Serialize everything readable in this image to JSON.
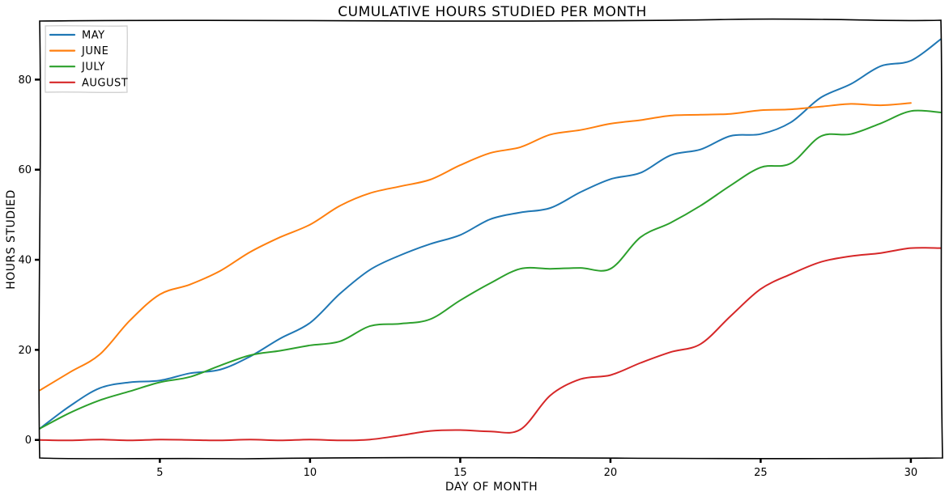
{
  "chart_data": {
    "type": "line",
    "title": "CUMULATIVE HOURS STUDIED PER MONTH",
    "xlabel": "DAY OF MONTH",
    "ylabel": "HOURS STUDIED",
    "xlim": [
      1,
      31
    ],
    "ylim": [
      -4,
      93
    ],
    "xticks": [
      5,
      10,
      15,
      20,
      25,
      30
    ],
    "yticks": [
      0,
      20,
      40,
      60,
      80
    ],
    "grid": false,
    "legend": "top-left",
    "x": [
      1,
      2,
      3,
      4,
      5,
      6,
      7,
      8,
      9,
      10,
      11,
      12,
      13,
      14,
      15,
      16,
      17,
      18,
      19,
      20,
      21,
      22,
      23,
      24,
      25,
      26,
      27,
      28,
      29,
      30,
      31
    ],
    "series": [
      {
        "name": "MAY",
        "color": "#1f77b4",
        "values": [
          2.5,
          7.5,
          11.5,
          12.8,
          13.2,
          14.8,
          15.6,
          18.5,
          22.5,
          26.0,
          32.5,
          37.8,
          41.0,
          43.5,
          45.5,
          49.0,
          50.5,
          51.5,
          55.0,
          57.9,
          59.3,
          63.2,
          64.5,
          67.5,
          67.9,
          70.5,
          76.0,
          79.0,
          83.0,
          84.2,
          89.0
        ]
      },
      {
        "name": "JUNE",
        "color": "#ff7f0e",
        "values": [
          11.0,
          15.0,
          19.0,
          26.5,
          32.3,
          34.5,
          37.5,
          41.7,
          45.0,
          47.8,
          52.0,
          54.8,
          56.3,
          57.8,
          61.0,
          63.7,
          65.0,
          67.8,
          68.8,
          70.2,
          71.0,
          72.0,
          72.2,
          72.4,
          73.2,
          73.4,
          74.0,
          74.6,
          74.3,
          74.8,
          null
        ]
      },
      {
        "name": "JULY",
        "color": "#2ca02c",
        "values": [
          2.5,
          6.0,
          8.8,
          10.8,
          12.8,
          14.0,
          16.5,
          18.8,
          19.8,
          21.0,
          21.9,
          25.3,
          25.8,
          26.8,
          31.0,
          34.8,
          38.0,
          38.0,
          38.2,
          38.0,
          45.0,
          48.2,
          52.0,
          56.5,
          60.5,
          61.4,
          67.4,
          67.9,
          70.3,
          73.0,
          72.7
        ]
      },
      {
        "name": "AUGUST",
        "color": "#d62728",
        "values": [
          0.0,
          -0.1,
          0.1,
          -0.1,
          0.1,
          0.0,
          -0.1,
          0.1,
          -0.1,
          0.1,
          -0.1,
          0.1,
          1.0,
          2.0,
          2.2,
          1.9,
          2.3,
          9.9,
          13.5,
          14.4,
          17.1,
          19.5,
          21.3,
          27.5,
          33.5,
          36.8,
          39.5,
          40.8,
          41.5,
          42.6,
          42.6
        ]
      }
    ]
  }
}
